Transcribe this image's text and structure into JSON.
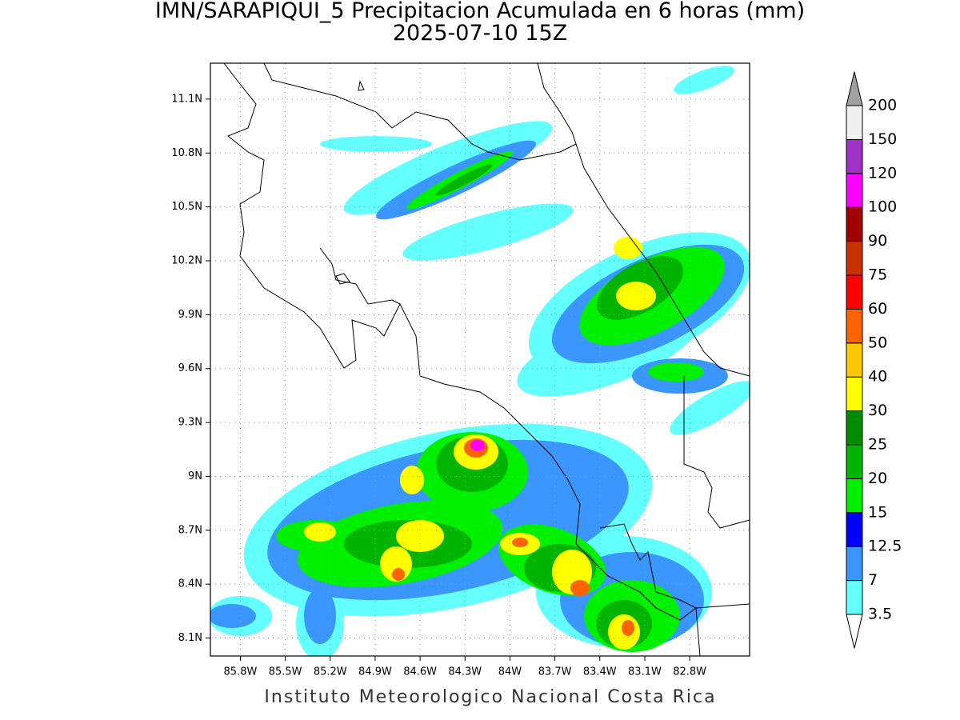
{
  "header": {
    "title": "IMN/SARAPIQUI_5 Precipitacion Acumulada en 6 horas (mm)",
    "subtitle": "2025-07-10 15Z"
  },
  "map": {
    "lonlim": [
      -86.0,
      -82.4
    ],
    "latlim": [
      8.0,
      11.3
    ],
    "lon_ticks": [
      {
        "value": -85.8,
        "label": "85.8W"
      },
      {
        "value": -85.5,
        "label": "85.5W"
      },
      {
        "value": -85.2,
        "label": "85.2W"
      },
      {
        "value": -84.9,
        "label": "84.9W"
      },
      {
        "value": -84.6,
        "label": "84.6W"
      },
      {
        "value": -84.3,
        "label": "84.3W"
      },
      {
        "value": -84.0,
        "label": "84W"
      },
      {
        "value": -83.7,
        "label": "83.7W"
      },
      {
        "value": -83.4,
        "label": "83.4W"
      },
      {
        "value": -83.1,
        "label": "83.1W"
      },
      {
        "value": -82.8,
        "label": "82.8W"
      }
    ],
    "lat_ticks": [
      {
        "value": 8.1,
        "label": "8.1N"
      },
      {
        "value": 8.4,
        "label": "8.4N"
      },
      {
        "value": 8.7,
        "label": "8.7N"
      },
      {
        "value": 9.0,
        "label": "9N"
      },
      {
        "value": 9.3,
        "label": "9.3N"
      },
      {
        "value": 9.6,
        "label": "9.6N"
      },
      {
        "value": 9.9,
        "label": "9.9N"
      },
      {
        "value": 10.2,
        "label": "10.2N"
      },
      {
        "value": 10.5,
        "label": "10.5N"
      },
      {
        "value": 10.8,
        "label": "10.8N"
      },
      {
        "value": 11.1,
        "label": "11.1N"
      }
    ]
  },
  "colorbar": {
    "levels": [
      3.5,
      7,
      12.5,
      15,
      20,
      25,
      30,
      40,
      50,
      60,
      75,
      90,
      100,
      120,
      150,
      200
    ],
    "colors": [
      "#64ffff",
      "#3c96ff",
      "#0000ff",
      "#00f000",
      "#00b400",
      "#008c00",
      "#ffff00",
      "#ffc800",
      "#ff6400",
      "#ff0000",
      "#c83200",
      "#a00000",
      "#ff00ff",
      "#a032c8",
      "#f0f0f0"
    ],
    "under_color": "#ffffff",
    "over_color": "#a0a0a0"
  },
  "footer": {
    "credit": "Instituto Meteorologico Nacional Costa Rica"
  }
}
